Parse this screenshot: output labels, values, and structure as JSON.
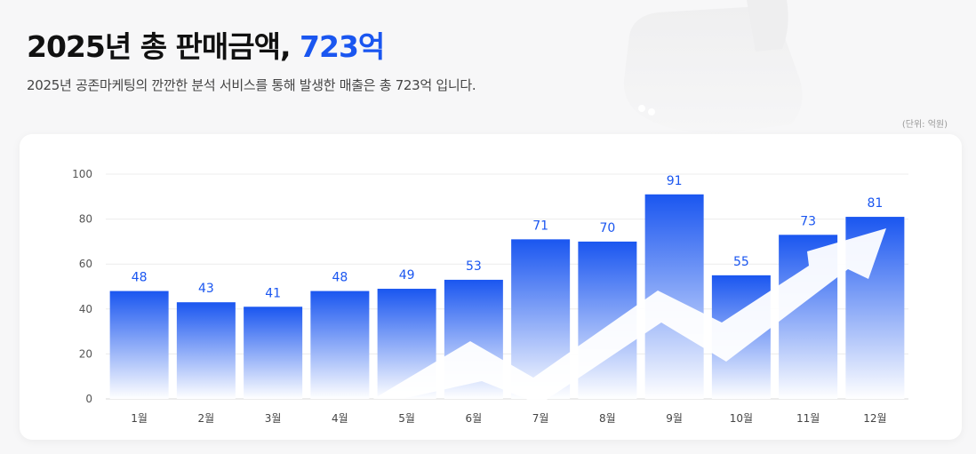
{
  "header": {
    "title_main": "2025년 총 판매금액,",
    "title_highlight": "723억",
    "subtitle": "2025년 공존마케팅의 깐깐한 분석 서비스를 통해 발생한 매출은 총 723억 입니다.",
    "unit_note": "(단위: 억원)"
  },
  "decor": {
    "thumb_icon": "thumbs-up-icon"
  },
  "colors": {
    "accent": "#1a56f0",
    "bar_top": "#1a56f0",
    "bar_bottom": "#ffffff",
    "value_label": "#1a56f0"
  },
  "chart_data": {
    "type": "bar",
    "title": "",
    "xlabel": "",
    "ylabel": "",
    "categories": [
      "1월",
      "2월",
      "3월",
      "4월",
      "5월",
      "6월",
      "7월",
      "8월",
      "9월",
      "10월",
      "11월",
      "12월"
    ],
    "values": [
      48,
      43,
      41,
      48,
      49,
      53,
      71,
      70,
      91,
      55,
      73,
      81
    ],
    "ylim": [
      0,
      100
    ],
    "yticks": [
      0,
      20,
      40,
      60,
      80,
      100
    ],
    "grid": true,
    "legend": "none",
    "data_labels": true,
    "annotation": "trend-arrow-up"
  }
}
